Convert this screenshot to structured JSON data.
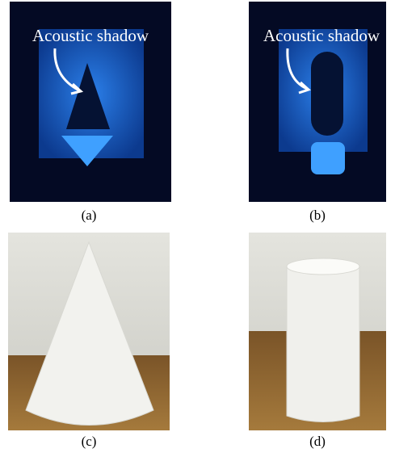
{
  "panels": [
    {
      "label": "(a)",
      "annotation": "Acoustic shadow"
    },
    {
      "label": "(b)",
      "annotation": "Acoustic shadow"
    },
    {
      "label": "(c)"
    },
    {
      "label": "(d)"
    }
  ]
}
